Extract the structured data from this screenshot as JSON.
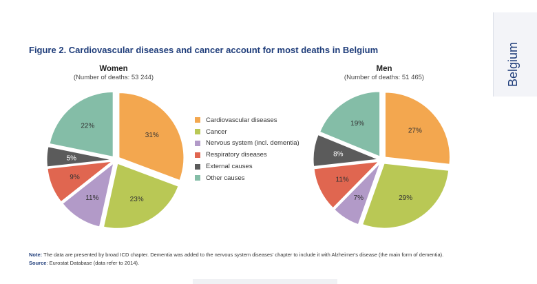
{
  "side_tab": {
    "label": "Belgium"
  },
  "figure": {
    "title": "Figure 2. Cardiovascular diseases and cancer account for most deaths in Belgium"
  },
  "legend": [
    {
      "label": "Cardiovascular diseases",
      "color": "#f3a74f"
    },
    {
      "label": "Cancer",
      "color": "#b9c855"
    },
    {
      "label": "Nervous system (incl. dementia)",
      "color": "#b29ac8"
    },
    {
      "label": "Respiratory diseases",
      "color": "#e06650"
    },
    {
      "label": "External causes",
      "color": "#5b5b5b"
    },
    {
      "label": "Other causes",
      "color": "#84bda7"
    }
  ],
  "chart_data": [
    {
      "type": "pie",
      "title": "Women",
      "subtitle": "(Number of deaths: 53 244)",
      "categories": [
        "Cardiovascular diseases",
        "Cancer",
        "Nervous system (incl. dementia)",
        "Respiratory diseases",
        "External causes",
        "Other causes"
      ],
      "values": [
        31,
        23,
        11,
        9,
        5,
        22
      ],
      "labels": [
        "31%",
        "23%",
        "11%",
        "9%",
        "5%",
        "22%"
      ],
      "colors": [
        "#f3a74f",
        "#b9c855",
        "#b29ac8",
        "#e06650",
        "#5b5b5b",
        "#84bda7"
      ],
      "exploded": true
    },
    {
      "type": "pie",
      "title": "Men",
      "subtitle": "(Number of deaths: 51 465)",
      "categories": [
        "Cardiovascular diseases",
        "Cancer",
        "Nervous system (incl. dementia)",
        "Respiratory diseases",
        "External causes",
        "Other causes"
      ],
      "values": [
        27,
        29,
        7,
        11,
        8,
        19
      ],
      "labels": [
        "27%",
        "29%",
        "7%",
        "11%",
        "8%",
        "19%"
      ],
      "colors": [
        "#f3a74f",
        "#b9c855",
        "#b29ac8",
        "#e06650",
        "#5b5b5b",
        "#84bda7"
      ],
      "exploded": true
    }
  ],
  "notes": {
    "note_label": "Note:",
    "note_text": " The data are presented by broad ICD chapter. Dementia was added to the nervous system diseases' chapter to include it with Alzheimer's disease (the main form of dementia).",
    "source_label": "Source",
    "source_text": ": Eurostat Database (data refer to 2014)."
  }
}
